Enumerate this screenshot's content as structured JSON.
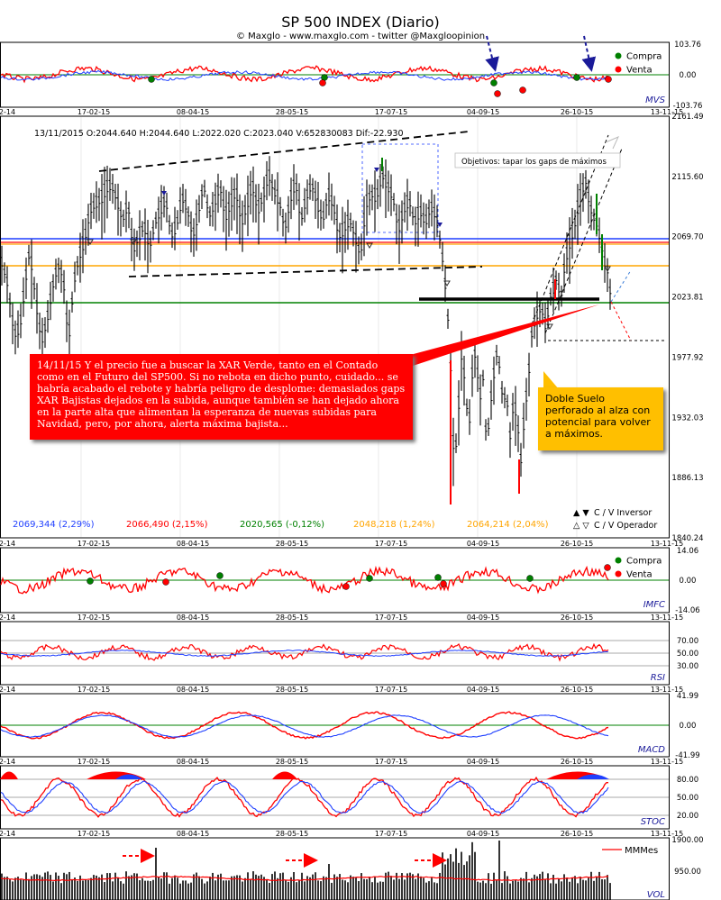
{
  "header": {
    "title": "SP 500 INDEX (Diario)",
    "subtitle": "© Maxglo - www.maxglo.com - twitter @Maxgloopinion"
  },
  "x_ticks": [
    "2-14",
    "17-02-15",
    "08-04-15",
    "28-05-15",
    "17-07-15",
    "04-09-15",
    "26-10-15",
    "13-11-15"
  ],
  "legend": {
    "buy": "Compra",
    "sell": "Venta"
  },
  "ohlc_line": "13/11/2015  O:2044.640  H:2044.640  L:2022.020  C:2023.040  V:652830083  Dif:-22.930",
  "target_label": "Objetivos: tapar los gaps de máximos",
  "levels": [
    {
      "label": "2069,344 (2,29%)",
      "color": "#1f3fff"
    },
    {
      "label": "2066,490 (2,15%)",
      "color": "#ff0000"
    },
    {
      "label": "2020,565 (-0,12%)",
      "color": "#008000"
    },
    {
      "label": "2048,218 (1,24%)",
      "color": "#ffa500"
    },
    {
      "label": "2064,214 (2,04%)",
      "color": "#ffa500"
    }
  ],
  "cv_legend": {
    "investor": "C / V Inversor",
    "operator": "C / V Operador"
  },
  "annotations": {
    "red_box": "14/11/15  Y el precio fue a buscar la XAR Verde, tanto en el Contado como en el Futuro del SP500. Si no rebota en dicho punto, cuidado... se habría acabado el rebote y habría peligro de desplome: demasiados gaps XAR Bajistas dejados en la subida, aunque también se han dejado ahora en la parte alta que alimentan la esperanza de nuevas subidas para Navidad, pero, por ahora, alerta máxima bajista...",
    "yellow_box": "Doble Suelo perforado al alza con potencial para volver a máximos."
  },
  "colors": {
    "up": "#008000",
    "down": "#ff0000",
    "blue": "#1f3fff",
    "navy": "#1a1a99",
    "orange": "#ffa500",
    "gray": "#888888"
  },
  "chart_data": [
    {
      "type": "candlestick",
      "name": "SP 500 INDEX (Diario)",
      "y_ticks": [
        "2161.49",
        "2115.60",
        "2069.70",
        "2023.81",
        "1977.92",
        "1932.03",
        "1886.13",
        "1840.24"
      ],
      "ylim": [
        1840.24,
        2161.49
      ],
      "close_path": [
        [
          0,
          2055
        ],
        [
          8,
          2035
        ],
        [
          16,
          1995
        ],
        [
          22,
          2000
        ],
        [
          28,
          2035
        ],
        [
          33,
          2060
        ],
        [
          40,
          2020
        ],
        [
          46,
          1990
        ],
        [
          52,
          2005
        ],
        [
          58,
          2030
        ],
        [
          64,
          2048
        ],
        [
          70,
          2040
        ],
        [
          76,
          1990
        ],
        [
          82,
          2035
        ],
        [
          88,
          2055
        ],
        [
          94,
          2068
        ],
        [
          100,
          2090
        ],
        [
          106,
          2095
        ],
        [
          112,
          2098
        ],
        [
          118,
          2107
        ],
        [
          124,
          2109
        ],
        [
          130,
          2097
        ],
        [
          136,
          2082
        ],
        [
          142,
          2095
        ],
        [
          148,
          2060
        ],
        [
          154,
          2070
        ],
        [
          160,
          2078
        ],
        [
          166,
          2062
        ],
        [
          172,
          2080
        ],
        [
          178,
          2090
        ],
        [
          184,
          2098
        ],
        [
          190,
          2070
        ],
        [
          196,
          2078
        ],
        [
          202,
          2100
        ],
        [
          208,
          2090
        ],
        [
          214,
          2070
        ],
        [
          220,
          2088
        ],
        [
          226,
          2110
        ],
        [
          232,
          2085
        ],
        [
          238,
          2095
        ],
        [
          244,
          2109
        ],
        [
          250,
          2085
        ],
        [
          256,
          2095
        ],
        [
          262,
          2105
        ],
        [
          268,
          2080
        ],
        [
          274,
          2094
        ],
        [
          280,
          2110
        ],
        [
          286,
          2090
        ],
        [
          292,
          2100
        ],
        [
          298,
          2118
        ],
        [
          304,
          2104
        ],
        [
          310,
          2097
        ],
        [
          316,
          2075
        ],
        [
          322,
          2098
        ],
        [
          328,
          2112
        ],
        [
          334,
          2082
        ],
        [
          340,
          2100
        ],
        [
          346,
          2110
        ],
        [
          352,
          2095
        ],
        [
          358,
          2082
        ],
        [
          364,
          2102
        ],
        [
          370,
          2094
        ],
        [
          376,
          2070
        ],
        [
          382,
          2076
        ],
        [
          388,
          2083
        ],
        [
          394,
          2070
        ],
        [
          400,
          2055
        ],
        [
          406,
          2095
        ],
        [
          412,
          2102
        ],
        [
          418,
          2100
        ],
        [
          424,
          2117
        ],
        [
          430,
          2108
        ],
        [
          436,
          2100
        ],
        [
          442,
          2075
        ],
        [
          448,
          2090
        ],
        [
          454,
          2098
        ],
        [
          460,
          2080
        ],
        [
          466,
          2090
        ],
        [
          472,
          2080
        ],
        [
          478,
          2093
        ],
        [
          484,
          2085
        ],
        [
          490,
          2060
        ],
        [
          496,
          2020
        ],
        [
          500,
          1970
        ],
        [
          504,
          1893
        ],
        [
          508,
          1930
        ],
        [
          512,
          1980
        ],
        [
          516,
          1960
        ],
        [
          520,
          1920
        ],
        [
          524,
          1965
        ],
        [
          528,
          1985
        ],
        [
          532,
          1945
        ],
        [
          536,
          1962
        ],
        [
          540,
          1910
        ],
        [
          546,
          1955
        ],
        [
          552,
          1985
        ],
        [
          558,
          1945
        ],
        [
          562,
          1950
        ],
        [
          566,
          1918
        ],
        [
          570,
          1945
        ],
        [
          574,
          1930
        ],
        [
          578,
          1900
        ],
        [
          582,
          1935
        ],
        [
          586,
          1960
        ],
        [
          590,
          1995
        ],
        [
          594,
          2007
        ],
        [
          598,
          2015
        ],
        [
          602,
          2012
        ],
        [
          606,
          2000
        ],
        [
          610,
          2023
        ],
        [
          614,
          2030
        ],
        [
          618,
          2040
        ],
        [
          622,
          2020
        ],
        [
          626,
          2045
        ],
        [
          630,
          2060
        ],
        [
          634,
          2070
        ],
        [
          638,
          2080
        ],
        [
          642,
          2095
        ],
        [
          646,
          2105
        ],
        [
          650,
          2112
        ],
        [
          654,
          2095
        ],
        [
          658,
          2085
        ],
        [
          662,
          2080
        ],
        [
          666,
          2068
        ],
        [
          670,
          2052
        ],
        [
          674,
          2044
        ],
        [
          678,
          2023
        ]
      ]
    },
    {
      "type": "line",
      "name": "MVS",
      "y_ticks": [
        "103.76",
        "0.00",
        "-103.76"
      ],
      "ylim": [
        -103.76,
        103.76
      ]
    },
    {
      "type": "line",
      "name": "IMFC",
      "y_ticks": [
        "14.06",
        "0.00",
        "-14.06"
      ],
      "ylim": [
        -14.06,
        14.06
      ]
    },
    {
      "type": "line",
      "name": "RSI",
      "y_ticks": [
        "70.00",
        "50.00",
        "30.00"
      ],
      "ylim": [
        20,
        80
      ]
    },
    {
      "type": "line",
      "name": "MACD",
      "y_ticks": [
        "41.99",
        "0.00",
        "-41.99"
      ],
      "ylim": [
        -41.99,
        41.99
      ]
    },
    {
      "type": "line",
      "name": "STOC",
      "y_ticks": [
        "80.00",
        "50.00",
        "20.00"
      ],
      "ylim": [
        0,
        100
      ]
    },
    {
      "type": "bar",
      "name": "VOL",
      "y_ticks": [
        "1900.00",
        "950.00"
      ],
      "legend": "MMMes"
    }
  ]
}
